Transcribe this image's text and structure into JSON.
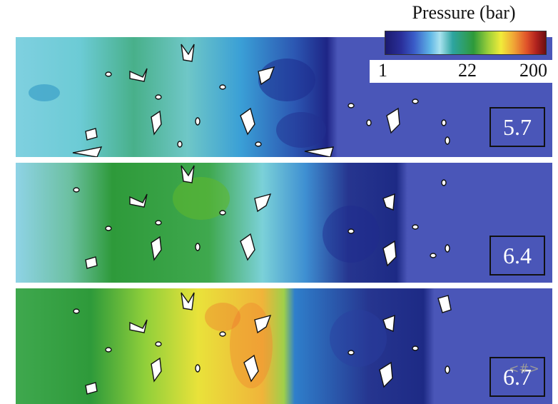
{
  "figure": {
    "colorbar": {
      "title": "Pressure (bar)",
      "ticks": [
        "1",
        "22",
        "200"
      ],
      "colormap": [
        "#1b1a6e",
        "#3a5cc8",
        "#a9e2ef",
        "#2e9a3a",
        "#f1ec3a",
        "#e0532a",
        "#6b0e10"
      ]
    },
    "panels": [
      {
        "time": "5.7"
      },
      {
        "time": "6.4"
      },
      {
        "time": "6.7"
      }
    ],
    "watermark": "<#>",
    "colors": {
      "unshocked": "#4a56b8",
      "low_pressure": "#8fd3e6",
      "mid_pressure": "#3aa34a",
      "high_pressure": "#e9e23a"
    }
  }
}
